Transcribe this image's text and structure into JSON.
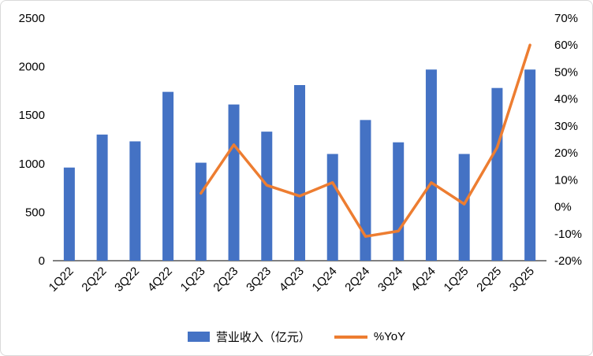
{
  "chart_data": {
    "type": "bar",
    "subtype": "combo-bar-line",
    "title": "",
    "xlabel": "",
    "ylabel_left": "",
    "ylabel_right": "",
    "grid": false,
    "legend_position": "bottom",
    "categories": [
      "1Q22",
      "2Q22",
      "3Q22",
      "4Q22",
      "1Q23",
      "2Q23",
      "3Q23",
      "4Q23",
      "1Q24",
      "2Q24",
      "3Q24",
      "4Q24",
      "1Q25",
      "2Q25",
      "3Q25"
    ],
    "series": [
      {
        "name": "营业收入（亿元）",
        "type": "bar",
        "axis": "left",
        "color": "#4472C4",
        "values": [
          960,
          1300,
          1230,
          1740,
          1010,
          1610,
          1330,
          1810,
          1100,
          1450,
          1220,
          1970,
          1100,
          1780,
          1970
        ]
      },
      {
        "name": "%YoY",
        "type": "line",
        "axis": "right",
        "color": "#ED7D31",
        "values": [
          null,
          null,
          null,
          null,
          5,
          23,
          8,
          4,
          9,
          -11,
          -9,
          9,
          1,
          22,
          60
        ]
      }
    ],
    "y_left": {
      "min": 0,
      "max": 2500,
      "step": 500
    },
    "y_right": {
      "min": -20,
      "max": 70,
      "step": 10,
      "suffix": "%"
    },
    "axis_line_color": "#000000",
    "tick_label_color": "#000000"
  }
}
